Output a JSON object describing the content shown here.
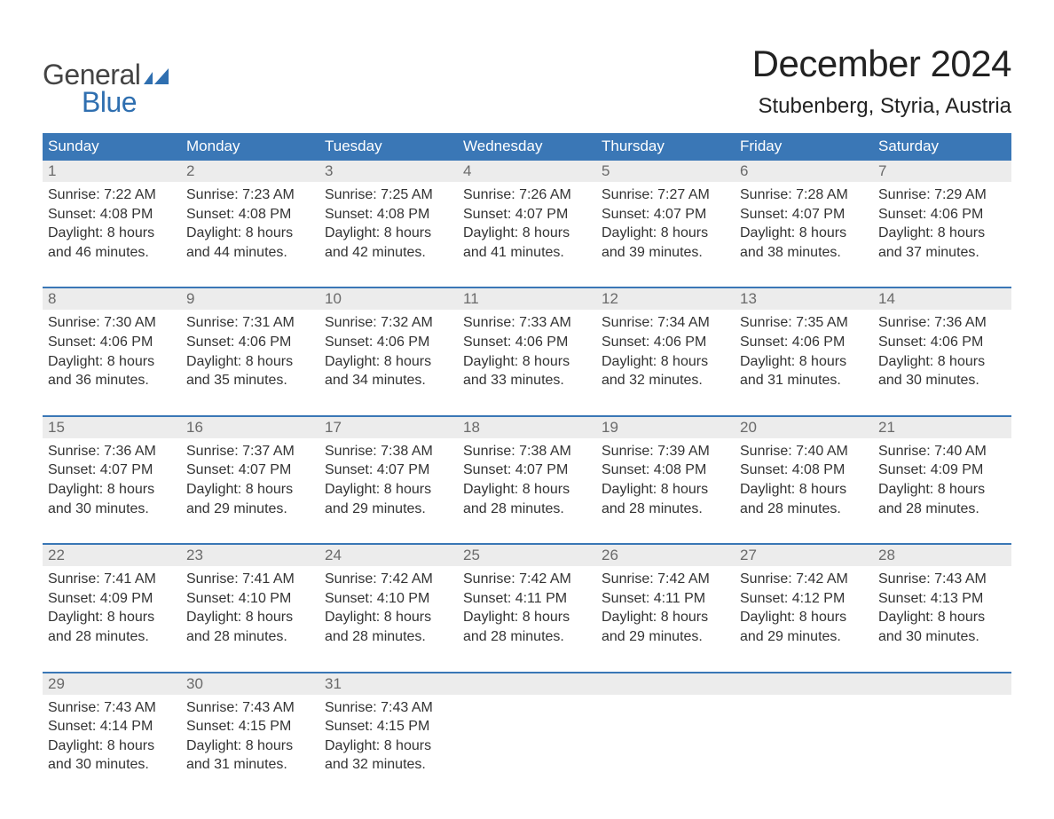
{
  "brand": {
    "word1": "General",
    "word2": "Blue",
    "flag_color": "#2f6fb0",
    "text_color": "#444"
  },
  "title": "December 2024",
  "location": "Stubenberg, Styria, Austria",
  "colors": {
    "header_bg": "#3a77b6",
    "header_text": "#ffffff",
    "daynum_bg": "#ececec",
    "daynum_text": "#6a6a6a",
    "body_text": "#333333",
    "page_bg": "#ffffff"
  },
  "day_names": [
    "Sunday",
    "Monday",
    "Tuesday",
    "Wednesday",
    "Thursday",
    "Friday",
    "Saturday"
  ],
  "labels": {
    "sunrise": "Sunrise:",
    "sunset": "Sunset:",
    "daylight": "Daylight:"
  },
  "weeks": [
    [
      {
        "n": "1",
        "sr": "7:22 AM",
        "ss": "4:08 PM",
        "dl": "8 hours and 46 minutes."
      },
      {
        "n": "2",
        "sr": "7:23 AM",
        "ss": "4:08 PM",
        "dl": "8 hours and 44 minutes."
      },
      {
        "n": "3",
        "sr": "7:25 AM",
        "ss": "4:08 PM",
        "dl": "8 hours and 42 minutes."
      },
      {
        "n": "4",
        "sr": "7:26 AM",
        "ss": "4:07 PM",
        "dl": "8 hours and 41 minutes."
      },
      {
        "n": "5",
        "sr": "7:27 AM",
        "ss": "4:07 PM",
        "dl": "8 hours and 39 minutes."
      },
      {
        "n": "6",
        "sr": "7:28 AM",
        "ss": "4:07 PM",
        "dl": "8 hours and 38 minutes."
      },
      {
        "n": "7",
        "sr": "7:29 AM",
        "ss": "4:06 PM",
        "dl": "8 hours and 37 minutes."
      }
    ],
    [
      {
        "n": "8",
        "sr": "7:30 AM",
        "ss": "4:06 PM",
        "dl": "8 hours and 36 minutes."
      },
      {
        "n": "9",
        "sr": "7:31 AM",
        "ss": "4:06 PM",
        "dl": "8 hours and 35 minutes."
      },
      {
        "n": "10",
        "sr": "7:32 AM",
        "ss": "4:06 PM",
        "dl": "8 hours and 34 minutes."
      },
      {
        "n": "11",
        "sr": "7:33 AM",
        "ss": "4:06 PM",
        "dl": "8 hours and 33 minutes."
      },
      {
        "n": "12",
        "sr": "7:34 AM",
        "ss": "4:06 PM",
        "dl": "8 hours and 32 minutes."
      },
      {
        "n": "13",
        "sr": "7:35 AM",
        "ss": "4:06 PM",
        "dl": "8 hours and 31 minutes."
      },
      {
        "n": "14",
        "sr": "7:36 AM",
        "ss": "4:06 PM",
        "dl": "8 hours and 30 minutes."
      }
    ],
    [
      {
        "n": "15",
        "sr": "7:36 AM",
        "ss": "4:07 PM",
        "dl": "8 hours and 30 minutes."
      },
      {
        "n": "16",
        "sr": "7:37 AM",
        "ss": "4:07 PM",
        "dl": "8 hours and 29 minutes."
      },
      {
        "n": "17",
        "sr": "7:38 AM",
        "ss": "4:07 PM",
        "dl": "8 hours and 29 minutes."
      },
      {
        "n": "18",
        "sr": "7:38 AM",
        "ss": "4:07 PM",
        "dl": "8 hours and 28 minutes."
      },
      {
        "n": "19",
        "sr": "7:39 AM",
        "ss": "4:08 PM",
        "dl": "8 hours and 28 minutes."
      },
      {
        "n": "20",
        "sr": "7:40 AM",
        "ss": "4:08 PM",
        "dl": "8 hours and 28 minutes."
      },
      {
        "n": "21",
        "sr": "7:40 AM",
        "ss": "4:09 PM",
        "dl": "8 hours and 28 minutes."
      }
    ],
    [
      {
        "n": "22",
        "sr": "7:41 AM",
        "ss": "4:09 PM",
        "dl": "8 hours and 28 minutes."
      },
      {
        "n": "23",
        "sr": "7:41 AM",
        "ss": "4:10 PM",
        "dl": "8 hours and 28 minutes."
      },
      {
        "n": "24",
        "sr": "7:42 AM",
        "ss": "4:10 PM",
        "dl": "8 hours and 28 minutes."
      },
      {
        "n": "25",
        "sr": "7:42 AM",
        "ss": "4:11 PM",
        "dl": "8 hours and 28 minutes."
      },
      {
        "n": "26",
        "sr": "7:42 AM",
        "ss": "4:11 PM",
        "dl": "8 hours and 29 minutes."
      },
      {
        "n": "27",
        "sr": "7:42 AM",
        "ss": "4:12 PM",
        "dl": "8 hours and 29 minutes."
      },
      {
        "n": "28",
        "sr": "7:43 AM",
        "ss": "4:13 PM",
        "dl": "8 hours and 30 minutes."
      }
    ],
    [
      {
        "n": "29",
        "sr": "7:43 AM",
        "ss": "4:14 PM",
        "dl": "8 hours and 30 minutes."
      },
      {
        "n": "30",
        "sr": "7:43 AM",
        "ss": "4:15 PM",
        "dl": "8 hours and 31 minutes."
      },
      {
        "n": "31",
        "sr": "7:43 AM",
        "ss": "4:15 PM",
        "dl": "8 hours and 32 minutes."
      },
      null,
      null,
      null,
      null
    ]
  ]
}
